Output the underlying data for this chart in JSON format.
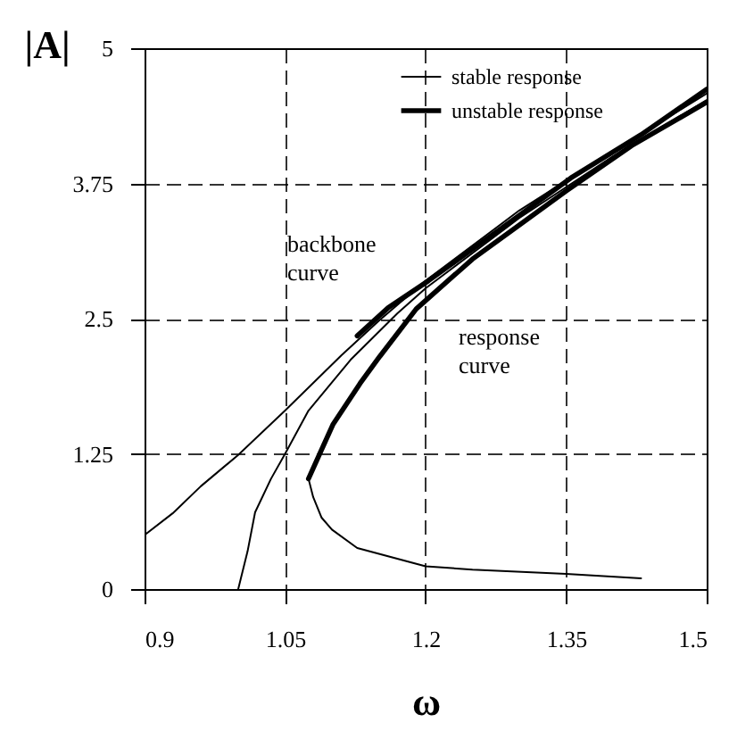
{
  "chart_data": {
    "type": "line",
    "xlabel": "ω",
    "ylabel": "|A|",
    "xlim": [
      0.9,
      1.5
    ],
    "ylim": [
      0,
      5
    ],
    "xticks": [
      0.9,
      1.05,
      1.2,
      1.35,
      1.5
    ],
    "yticks": [
      0,
      1.25,
      2.5,
      3.75,
      5
    ],
    "grid": true,
    "legend": "top right",
    "line_style": "solid",
    "marker": "none",
    "annotations": [
      "backbone curve",
      "response curve"
    ],
    "series": [
      {
        "name": "stable response",
        "color": "#000000",
        "x": [
          0.9,
          0.93,
          0.96,
          1.0,
          1.05,
          1.11,
          1.15,
          1.2,
          1.3,
          1.4,
          1.5
        ],
        "values": [
          0.5,
          0.7,
          0.95,
          1.24,
          1.65,
          2.16,
          2.48,
          2.85,
          3.5,
          4.05,
          4.58
        ]
      },
      {
        "color": "#000000",
        "x": [
          1.0,
          1.01,
          1.018,
          1.035,
          1.05,
          1.075,
          1.12,
          1.17,
          1.2,
          1.3,
          1.4,
          1.5
        ],
        "values": [
          0,
          0.35,
          0.71,
          1.02,
          1.25,
          1.65,
          2.12,
          2.55,
          2.78,
          3.43,
          4.0,
          4.52
        ]
      },
      {
        "color": "#000000",
        "x": [
          1.43,
          1.35,
          1.25,
          1.2,
          1.127,
          1.1,
          1.089,
          1.08,
          1.075
        ],
        "values": [
          0.1,
          0.14,
          0.18,
          0.21,
          0.38,
          0.55,
          0.66,
          0.85,
          1.02
        ]
      },
      {
        "name": "unstable response",
        "color": "#000000",
        "x": [
          1.075,
          1.101,
          1.13,
          1.151,
          1.19,
          1.25,
          1.35,
          1.42,
          1.5
        ],
        "values": [
          1.02,
          1.52,
          1.9,
          2.15,
          2.59,
          3.05,
          3.68,
          4.1,
          4.5
        ]
      },
      {
        "color": "#000000",
        "x": [
          1.127,
          1.16,
          1.203,
          1.28,
          1.355,
          1.43,
          1.5
        ],
        "values": [
          2.34,
          2.6,
          2.85,
          3.33,
          3.8,
          4.2,
          4.62
        ]
      }
    ]
  }
}
